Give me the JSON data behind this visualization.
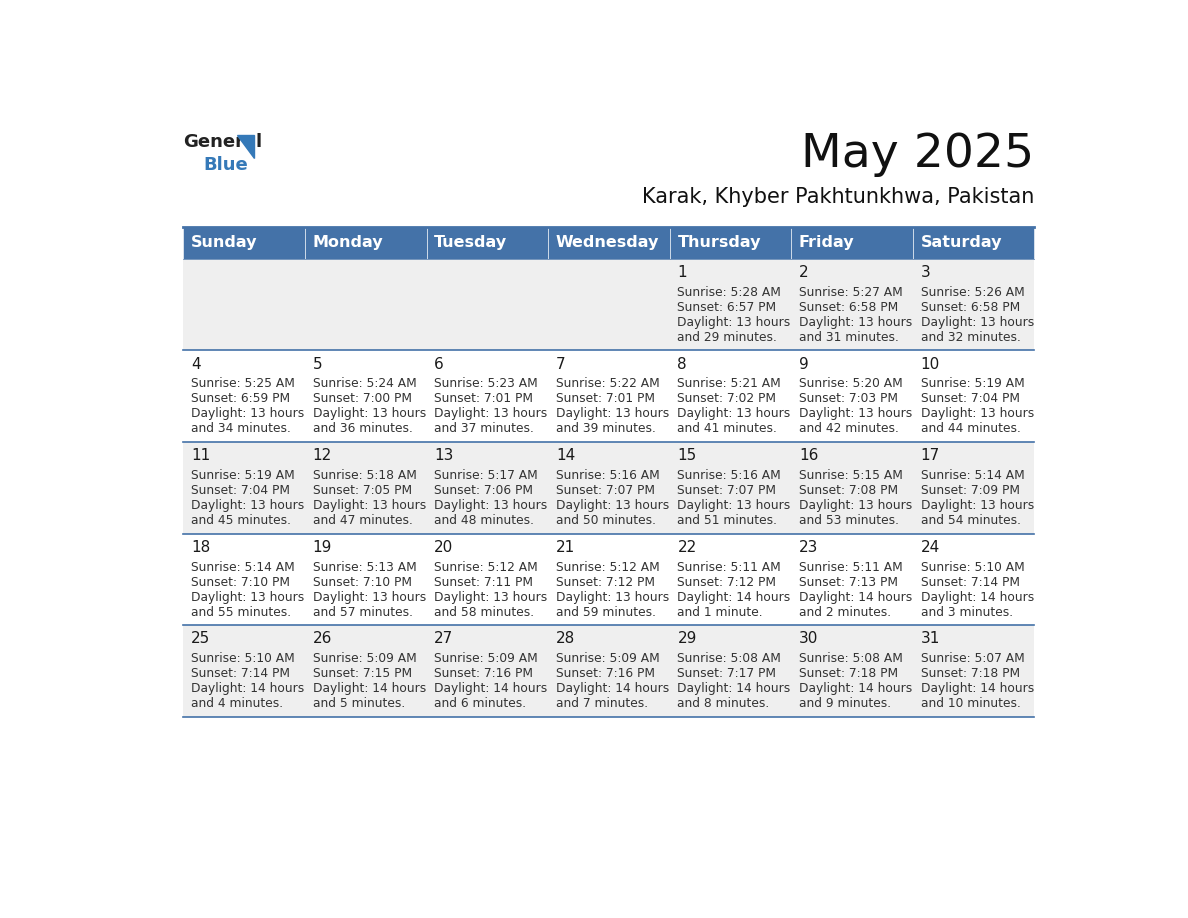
{
  "title": "May 2025",
  "subtitle": "Karak, Khyber Pakhtunkhwa, Pakistan",
  "days_of_week": [
    "Sunday",
    "Monday",
    "Tuesday",
    "Wednesday",
    "Thursday",
    "Friday",
    "Saturday"
  ],
  "header_bg": "#4472A8",
  "header_text": "#FFFFFF",
  "row_bg_odd": "#EFEFEF",
  "row_bg_even": "#FFFFFF",
  "cell_text_color": "#333333",
  "day_num_color": "#1a1a1a",
  "border_color": "#4472A8",
  "logo_general_color": "#222222",
  "logo_blue_color": "#3579B8",
  "weeks": [
    [
      {
        "day": "",
        "sunrise": "",
        "sunset": "",
        "daylight": ""
      },
      {
        "day": "",
        "sunrise": "",
        "sunset": "",
        "daylight": ""
      },
      {
        "day": "",
        "sunrise": "",
        "sunset": "",
        "daylight": ""
      },
      {
        "day": "",
        "sunrise": "",
        "sunset": "",
        "daylight": ""
      },
      {
        "day": "1",
        "sunrise": "5:28 AM",
        "sunset": "6:57 PM",
        "daylight": "13 hours\nand 29 minutes."
      },
      {
        "day": "2",
        "sunrise": "5:27 AM",
        "sunset": "6:58 PM",
        "daylight": "13 hours\nand 31 minutes."
      },
      {
        "day": "3",
        "sunrise": "5:26 AM",
        "sunset": "6:58 PM",
        "daylight": "13 hours\nand 32 minutes."
      }
    ],
    [
      {
        "day": "4",
        "sunrise": "5:25 AM",
        "sunset": "6:59 PM",
        "daylight": "13 hours\nand 34 minutes."
      },
      {
        "day": "5",
        "sunrise": "5:24 AM",
        "sunset": "7:00 PM",
        "daylight": "13 hours\nand 36 minutes."
      },
      {
        "day": "6",
        "sunrise": "5:23 AM",
        "sunset": "7:01 PM",
        "daylight": "13 hours\nand 37 minutes."
      },
      {
        "day": "7",
        "sunrise": "5:22 AM",
        "sunset": "7:01 PM",
        "daylight": "13 hours\nand 39 minutes."
      },
      {
        "day": "8",
        "sunrise": "5:21 AM",
        "sunset": "7:02 PM",
        "daylight": "13 hours\nand 41 minutes."
      },
      {
        "day": "9",
        "sunrise": "5:20 AM",
        "sunset": "7:03 PM",
        "daylight": "13 hours\nand 42 minutes."
      },
      {
        "day": "10",
        "sunrise": "5:19 AM",
        "sunset": "7:04 PM",
        "daylight": "13 hours\nand 44 minutes."
      }
    ],
    [
      {
        "day": "11",
        "sunrise": "5:19 AM",
        "sunset": "7:04 PM",
        "daylight": "13 hours\nand 45 minutes."
      },
      {
        "day": "12",
        "sunrise": "5:18 AM",
        "sunset": "7:05 PM",
        "daylight": "13 hours\nand 47 minutes."
      },
      {
        "day": "13",
        "sunrise": "5:17 AM",
        "sunset": "7:06 PM",
        "daylight": "13 hours\nand 48 minutes."
      },
      {
        "day": "14",
        "sunrise": "5:16 AM",
        "sunset": "7:07 PM",
        "daylight": "13 hours\nand 50 minutes."
      },
      {
        "day": "15",
        "sunrise": "5:16 AM",
        "sunset": "7:07 PM",
        "daylight": "13 hours\nand 51 minutes."
      },
      {
        "day": "16",
        "sunrise": "5:15 AM",
        "sunset": "7:08 PM",
        "daylight": "13 hours\nand 53 minutes."
      },
      {
        "day": "17",
        "sunrise": "5:14 AM",
        "sunset": "7:09 PM",
        "daylight": "13 hours\nand 54 minutes."
      }
    ],
    [
      {
        "day": "18",
        "sunrise": "5:14 AM",
        "sunset": "7:10 PM",
        "daylight": "13 hours\nand 55 minutes."
      },
      {
        "day": "19",
        "sunrise": "5:13 AM",
        "sunset": "7:10 PM",
        "daylight": "13 hours\nand 57 minutes."
      },
      {
        "day": "20",
        "sunrise": "5:12 AM",
        "sunset": "7:11 PM",
        "daylight": "13 hours\nand 58 minutes."
      },
      {
        "day": "21",
        "sunrise": "5:12 AM",
        "sunset": "7:12 PM",
        "daylight": "13 hours\nand 59 minutes."
      },
      {
        "day": "22",
        "sunrise": "5:11 AM",
        "sunset": "7:12 PM",
        "daylight": "14 hours\nand 1 minute."
      },
      {
        "day": "23",
        "sunrise": "5:11 AM",
        "sunset": "7:13 PM",
        "daylight": "14 hours\nand 2 minutes."
      },
      {
        "day": "24",
        "sunrise": "5:10 AM",
        "sunset": "7:14 PM",
        "daylight": "14 hours\nand 3 minutes."
      }
    ],
    [
      {
        "day": "25",
        "sunrise": "5:10 AM",
        "sunset": "7:14 PM",
        "daylight": "14 hours\nand 4 minutes."
      },
      {
        "day": "26",
        "sunrise": "5:09 AM",
        "sunset": "7:15 PM",
        "daylight": "14 hours\nand 5 minutes."
      },
      {
        "day": "27",
        "sunrise": "5:09 AM",
        "sunset": "7:16 PM",
        "daylight": "14 hours\nand 6 minutes."
      },
      {
        "day": "28",
        "sunrise": "5:09 AM",
        "sunset": "7:16 PM",
        "daylight": "14 hours\nand 7 minutes."
      },
      {
        "day": "29",
        "sunrise": "5:08 AM",
        "sunset": "7:17 PM",
        "daylight": "14 hours\nand 8 minutes."
      },
      {
        "day": "30",
        "sunrise": "5:08 AM",
        "sunset": "7:18 PM",
        "daylight": "14 hours\nand 9 minutes."
      },
      {
        "day": "31",
        "sunrise": "5:07 AM",
        "sunset": "7:18 PM",
        "daylight": "14 hours\nand 10 minutes."
      }
    ]
  ]
}
